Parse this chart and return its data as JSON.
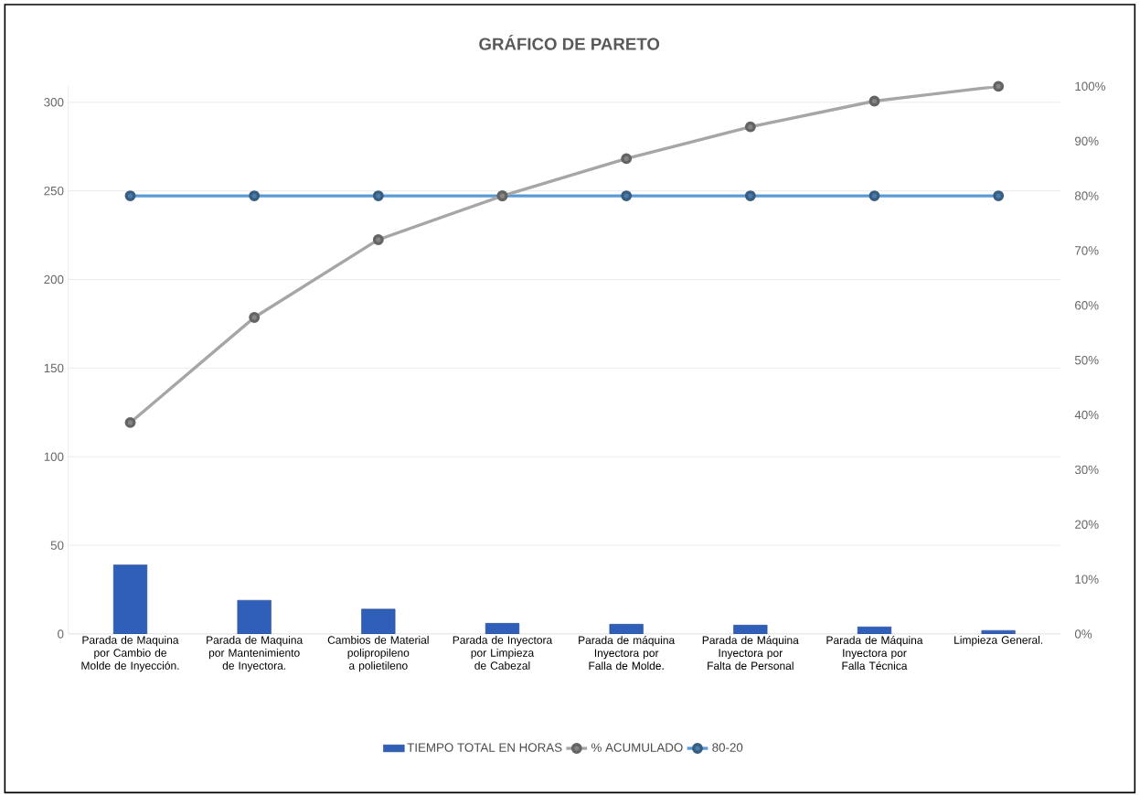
{
  "chart_data": {
    "type": "bar",
    "title": "GRÁFICO DE PARETO",
    "categories": [
      "Parada de Maquina por Cambio de Molde de Inyección.",
      "Parada de Maquina por Mantenimiento de Inyectora.",
      "Cambios de Material polipropileno a polietileno",
      "Parada de Inyectora por Limpieza de Cabezal",
      "Parada de máquina Inyectora por Falla de Molde.",
      "Parada de Máquina Inyectora por Falta de Personal",
      "Parada de Máquina Inyectora por Falla Técnica",
      "Limpieza General."
    ],
    "series": [
      {
        "name": "TIEMPO TOTAL EN HORAS",
        "color": "#2f5fb8",
        "values": [
          39,
          19,
          14,
          6,
          5.5,
          5,
          4,
          2
        ]
      },
      {
        "name": "% ACUMULADO",
        "type": "line",
        "axis": "y2",
        "color": "#a6a6a6",
        "values": [
          38.6,
          57.8,
          72,
          80,
          86.8,
          92.6,
          97.3,
          100
        ]
      },
      {
        "name": "80-20",
        "type": "line",
        "axis": "y2",
        "color": "#5b9bd5",
        "values": [
          80,
          80,
          80,
          80,
          80,
          80,
          80,
          80
        ]
      }
    ],
    "ylim": [
      0,
      309
    ],
    "yticks": [
      0,
      50,
      100,
      150,
      200,
      250,
      300
    ],
    "y2lim": [
      0,
      100
    ],
    "y2ticks": [
      {
        "value": 0,
        "label": "0%"
      },
      {
        "value": 10,
        "label": "10%"
      },
      {
        "value": 20,
        "label": "20%"
      },
      {
        "value": 30,
        "label": "30%"
      },
      {
        "value": 40,
        "label": "40%"
      },
      {
        "value": 50,
        "label": "50%"
      },
      {
        "value": 60,
        "label": "60%"
      },
      {
        "value": 70,
        "label": "70%"
      },
      {
        "value": 80,
        "label": "80%"
      },
      {
        "value": 90,
        "label": "90%"
      },
      {
        "value": 100,
        "label": "100%"
      }
    ],
    "grid": "y",
    "legend": "bottom",
    "marker": "circle",
    "line_style": "solid"
  }
}
